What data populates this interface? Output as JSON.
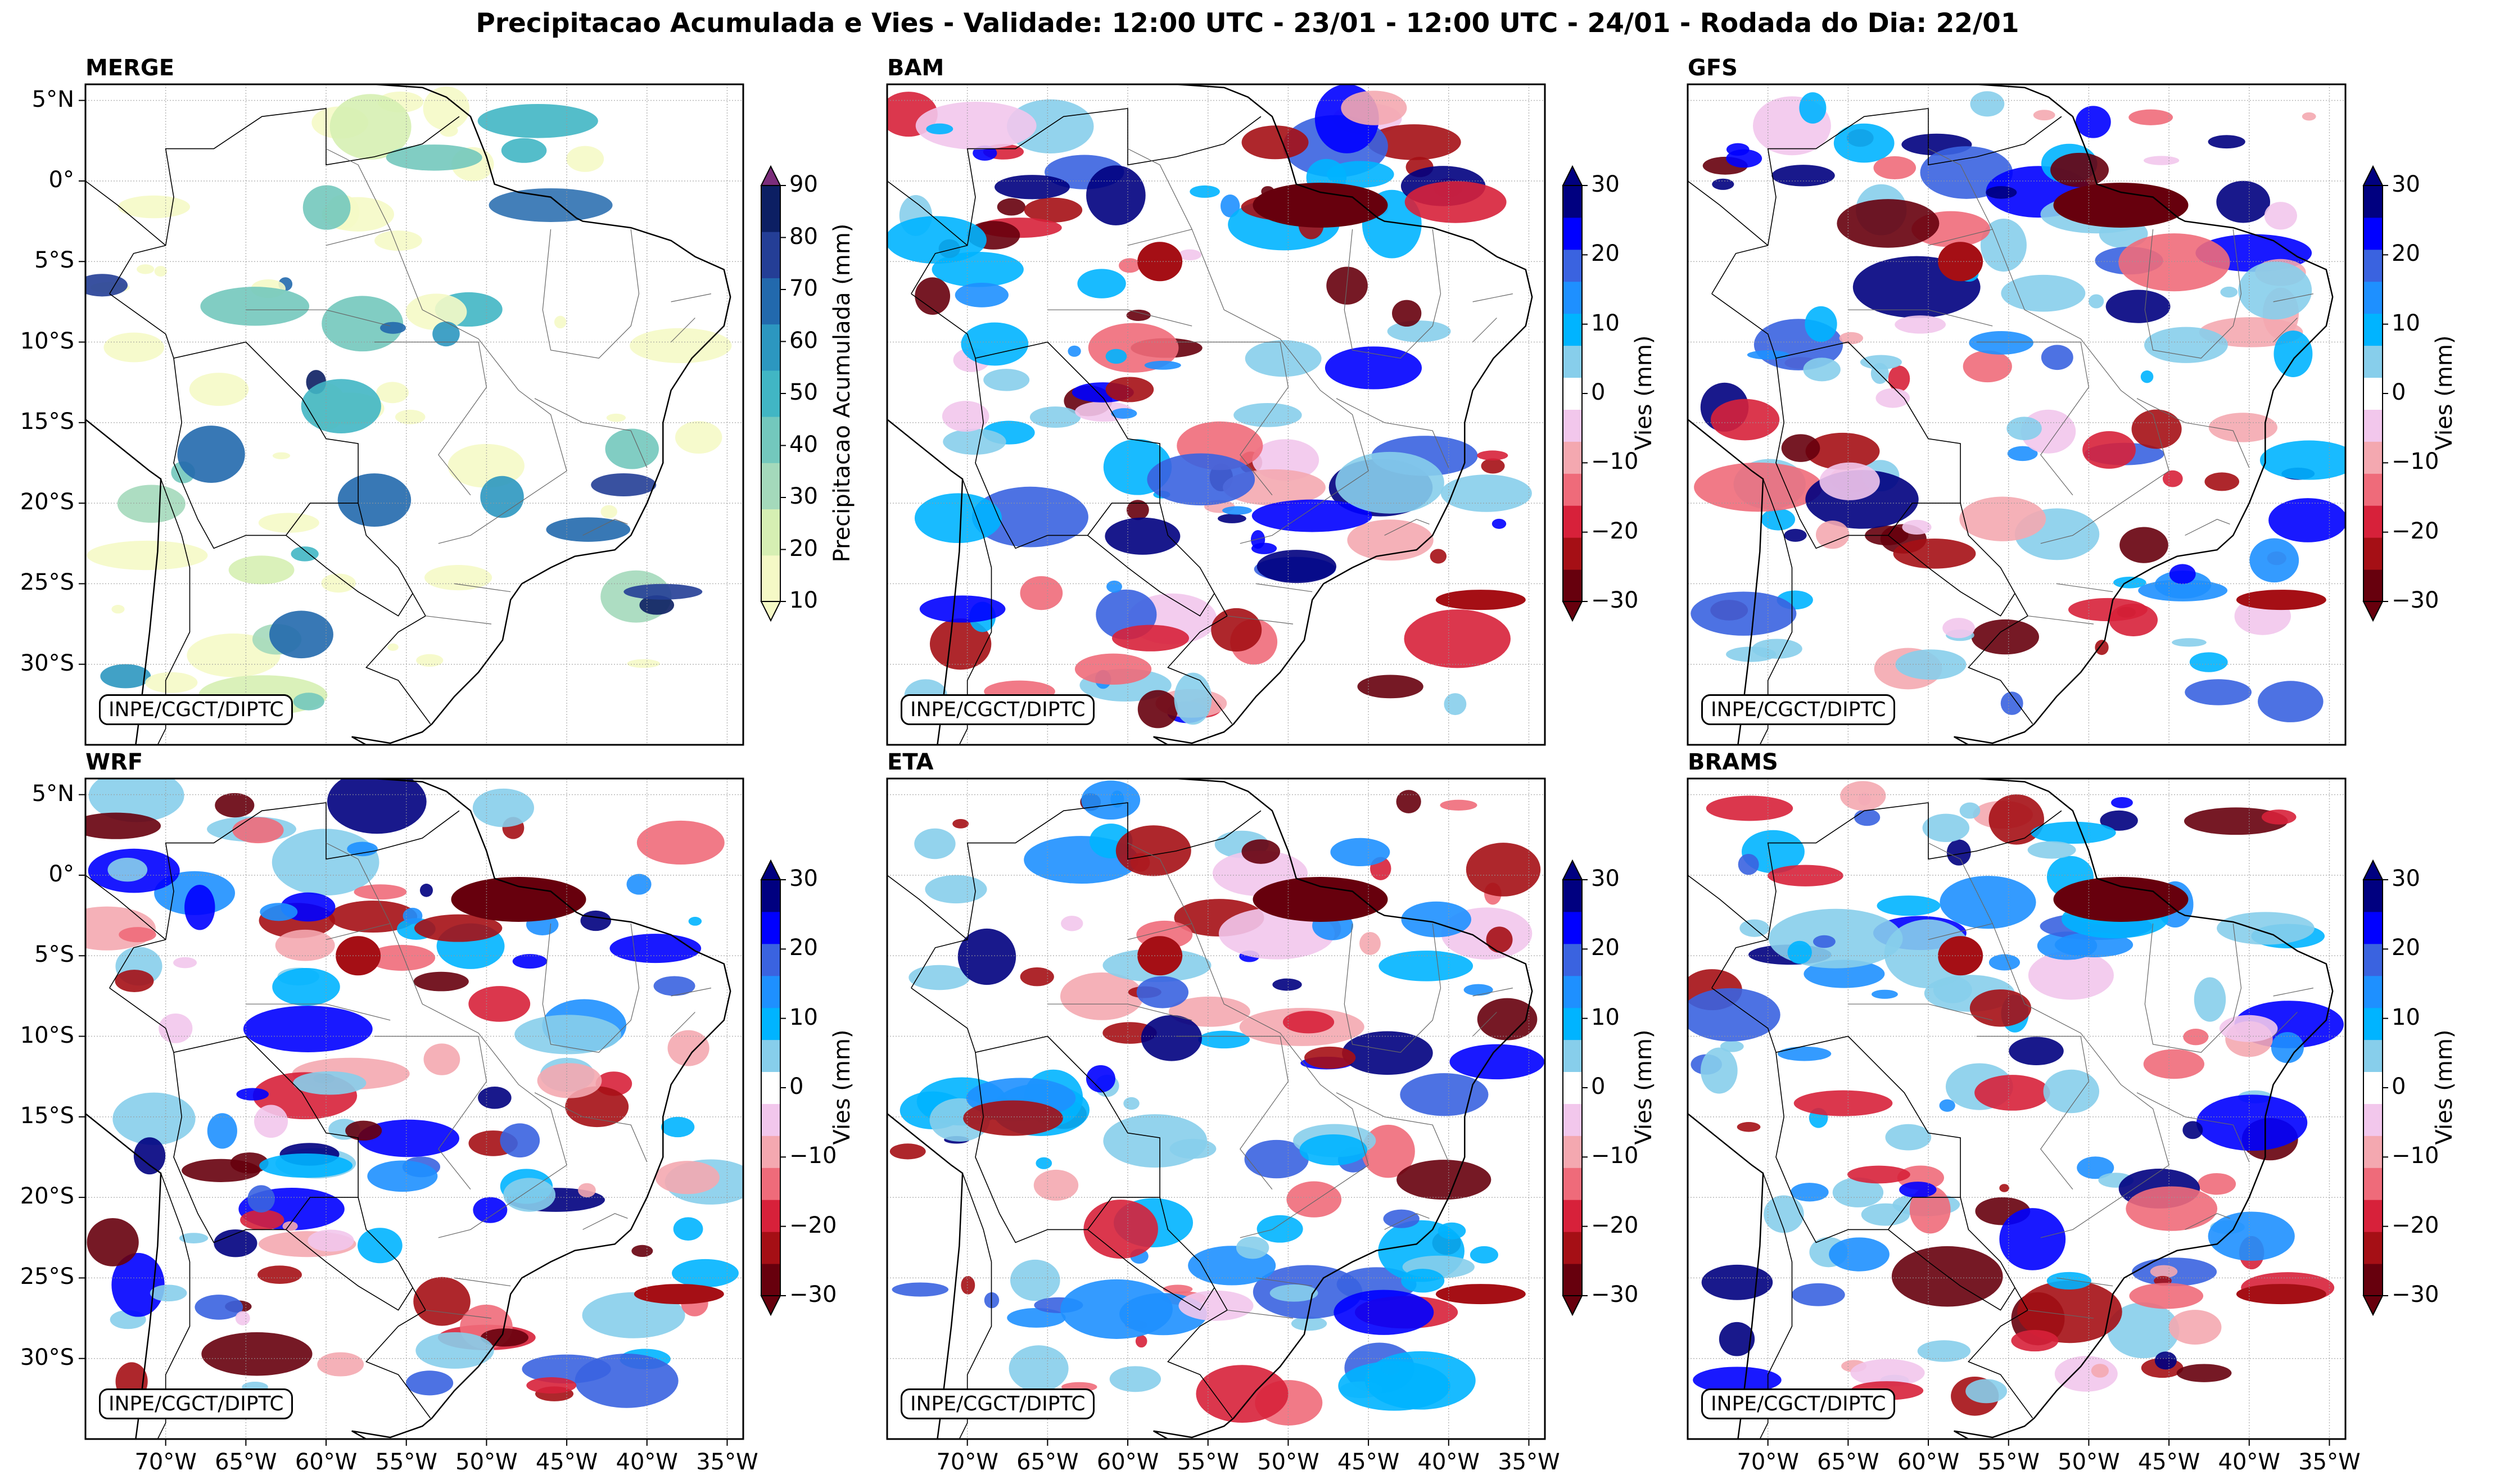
{
  "title": "Precipitacao Acumulada e Vies - Validade: 12:00 UTC - 23/01 - 12:00 UTC - 24/01 - Rodada do Dia: 22/01",
  "credit": "INPE/CGCT/DIPTC",
  "lat_labels": [
    "5°N",
    "0°",
    "5°S",
    "10°S",
    "15°S",
    "20°S",
    "25°S",
    "30°S"
  ],
  "lon_labels": [
    "70°W",
    "65°W",
    "60°W",
    "55°W",
    "50°W",
    "45°W",
    "40°W",
    "35°W"
  ],
  "panels": [
    {
      "name": "MERGE",
      "colorbar_label": "Precipitacao Acumulada (mm)",
      "ticks": [
        "90",
        "80",
        "70",
        "60",
        "50",
        "40",
        "30",
        "20",
        "10"
      ]
    },
    {
      "name": "BAM",
      "colorbar_label": "Vies (mm)",
      "ticks": [
        "30",
        "20",
        "10",
        "0",
        "−10",
        "−20",
        "−30"
      ]
    },
    {
      "name": "GFS",
      "colorbar_label": "Vies (mm)",
      "ticks": [
        "30",
        "20",
        "10",
        "0",
        "−10",
        "−20",
        "−30"
      ]
    },
    {
      "name": "WRF",
      "colorbar_label": "Vies (mm)",
      "ticks": [
        "30",
        "20",
        "10",
        "0",
        "−10",
        "−20",
        "−30"
      ]
    },
    {
      "name": "ETA",
      "colorbar_label": "Vies (mm)",
      "ticks": [
        "30",
        "20",
        "10",
        "0",
        "−10",
        "−20",
        "−30"
      ]
    },
    {
      "name": "BRAMS",
      "colorbar_label": "Vies (mm)",
      "ticks": [
        "30",
        "20",
        "10",
        "0",
        "−10",
        "−20",
        "−30"
      ]
    }
  ],
  "colors": {
    "precip": [
      "#f5f9c6",
      "#d6efb3",
      "#a4d9bb",
      "#73c8bd",
      "#41b6c4",
      "#2c97c0",
      "#2269ad",
      "#243e96",
      "#0c1f63"
    ],
    "precip_over": "#7b2d7b",
    "bias": [
      "#67000d",
      "#a50f15",
      "#d7213a",
      "#ef6b7a",
      "#f4a8b0",
      "#f2c7ec",
      "#ffffff",
      "#ffffff",
      "#87ceeb",
      "#00b4ff",
      "#1e90ff",
      "#3a63e0",
      "#0000ff",
      "#000080"
    ]
  }
}
